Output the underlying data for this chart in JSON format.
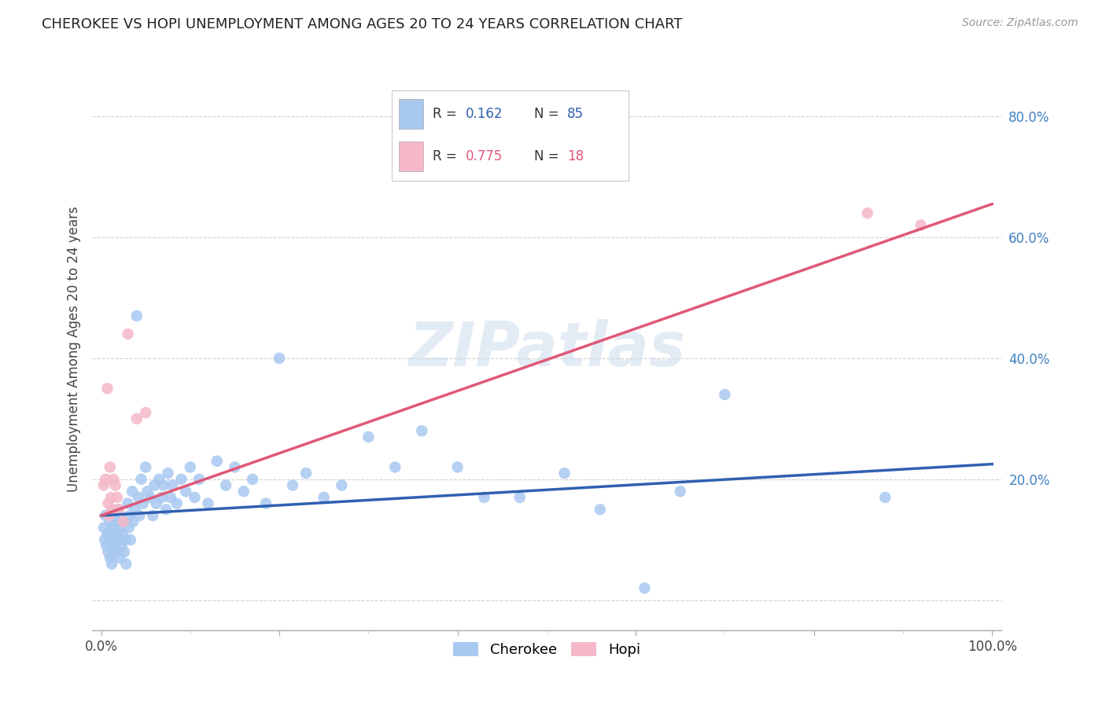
{
  "title": "CHEROKEE VS HOPI UNEMPLOYMENT AMONG AGES 20 TO 24 YEARS CORRELATION CHART",
  "source": "Source: ZipAtlas.com",
  "ylabel": "Unemployment Among Ages 20 to 24 years",
  "xlim": [
    -0.01,
    1.01
  ],
  "ylim": [
    -0.05,
    0.88
  ],
  "xticks": [
    0.0,
    0.2,
    0.4,
    0.6,
    0.8,
    1.0
  ],
  "xticklabels": [
    "0.0%",
    "",
    "",
    "",
    "",
    "100.0%"
  ],
  "ytick_positions": [
    0.0,
    0.2,
    0.4,
    0.6,
    0.8
  ],
  "yticklabels": [
    "",
    "20.0%",
    "40.0%",
    "60.0%",
    "80.0%"
  ],
  "cherokee_R": 0.162,
  "cherokee_N": 85,
  "hopi_R": 0.775,
  "hopi_N": 18,
  "cherokee_color": "#a8c8f0",
  "hopi_color": "#f5b8c8",
  "cherokee_line_color": "#3060b0",
  "hopi_line_color": "#e05878",
  "ytick_color": "#4080c0",
  "watermark": "ZIPatlas",
  "cherokee_x": [
    0.003,
    0.004,
    0.005,
    0.006,
    0.007,
    0.008,
    0.009,
    0.01,
    0.01,
    0.011,
    0.011,
    0.012,
    0.013,
    0.014,
    0.015,
    0.015,
    0.016,
    0.017,
    0.018,
    0.018,
    0.019,
    0.02,
    0.021,
    0.022,
    0.023,
    0.024,
    0.025,
    0.026,
    0.027,
    0.028,
    0.03,
    0.031,
    0.032,
    0.033,
    0.035,
    0.036,
    0.038,
    0.04,
    0.042,
    0.043,
    0.045,
    0.047,
    0.05,
    0.052,
    0.055,
    0.058,
    0.06,
    0.062,
    0.065,
    0.068,
    0.07,
    0.073,
    0.075,
    0.078,
    0.08,
    0.085,
    0.09,
    0.095,
    0.1,
    0.105,
    0.11,
    0.12,
    0.13,
    0.14,
    0.15,
    0.16,
    0.17,
    0.185,
    0.2,
    0.215,
    0.23,
    0.25,
    0.27,
    0.3,
    0.33,
    0.36,
    0.4,
    0.43,
    0.47,
    0.52,
    0.56,
    0.61,
    0.65,
    0.7,
    0.88
  ],
  "cherokee_y": [
    0.12,
    0.1,
    0.14,
    0.09,
    0.11,
    0.08,
    0.1,
    0.13,
    0.07,
    0.11,
    0.09,
    0.06,
    0.12,
    0.08,
    0.1,
    0.14,
    0.09,
    0.11,
    0.13,
    0.08,
    0.15,
    0.1,
    0.07,
    0.12,
    0.09,
    0.11,
    0.13,
    0.08,
    0.1,
    0.06,
    0.16,
    0.12,
    0.14,
    0.1,
    0.18,
    0.13,
    0.15,
    0.47,
    0.17,
    0.14,
    0.2,
    0.16,
    0.22,
    0.18,
    0.17,
    0.14,
    0.19,
    0.16,
    0.2,
    0.17,
    0.19,
    0.15,
    0.21,
    0.17,
    0.19,
    0.16,
    0.2,
    0.18,
    0.22,
    0.17,
    0.2,
    0.16,
    0.23,
    0.19,
    0.22,
    0.18,
    0.2,
    0.16,
    0.4,
    0.19,
    0.21,
    0.17,
    0.19,
    0.27,
    0.22,
    0.28,
    0.22,
    0.17,
    0.17,
    0.21,
    0.15,
    0.02,
    0.18,
    0.34,
    0.17
  ],
  "hopi_x": [
    0.003,
    0.005,
    0.007,
    0.008,
    0.009,
    0.01,
    0.011,
    0.012,
    0.014,
    0.016,
    0.018,
    0.02,
    0.025,
    0.03,
    0.04,
    0.05,
    0.86,
    0.92
  ],
  "hopi_y": [
    0.19,
    0.2,
    0.35,
    0.16,
    0.14,
    0.22,
    0.17,
    0.15,
    0.2,
    0.19,
    0.17,
    0.15,
    0.13,
    0.44,
    0.3,
    0.31,
    0.64,
    0.62
  ]
}
